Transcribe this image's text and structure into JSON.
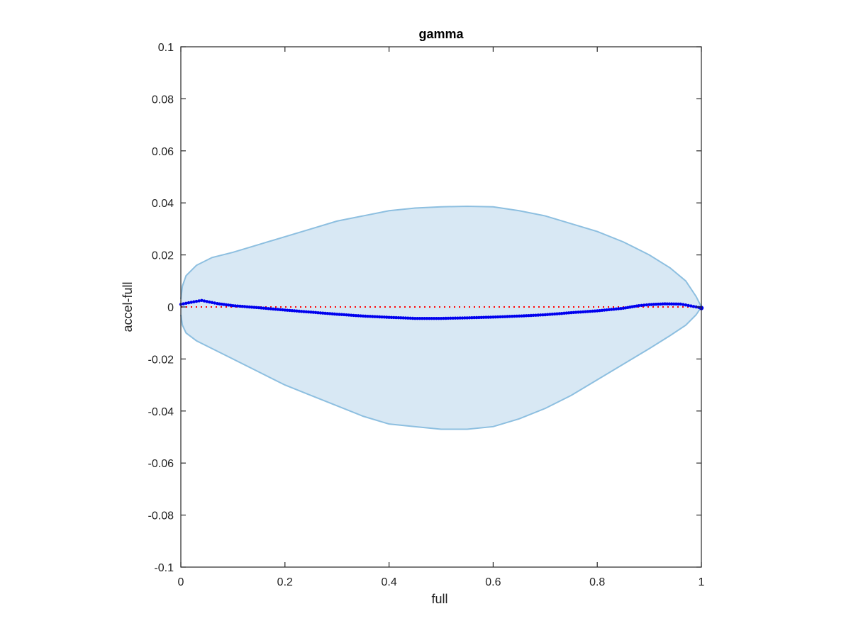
{
  "chart_data": {
    "type": "line",
    "title": "gamma",
    "xlabel": "full",
    "ylabel": "accel-full",
    "xlim": [
      0,
      1
    ],
    "ylim": [
      -0.1,
      0.1
    ],
    "x_ticks": [
      0,
      0.2,
      0.4,
      0.6,
      0.8,
      1
    ],
    "x_tick_labels": [
      "0",
      "0.2",
      "0.4",
      "0.6",
      "0.8",
      "1"
    ],
    "y_ticks": [
      0.1,
      0.08,
      0.06,
      0.04,
      0.02,
      0,
      -0.02,
      -0.04,
      -0.06,
      -0.08,
      -0.1
    ],
    "y_tick_labels": [
      "0.1",
      "0.08",
      "0.06",
      "0.04",
      "0.02",
      "0",
      "-0.02",
      "-0.04",
      "-0.06",
      "-0.08",
      "-0.1"
    ],
    "grid": false,
    "band": {
      "color": "#d8e8f4",
      "edge_color": "#8dbfe0",
      "x": [
        0,
        0.003,
        0.01,
        0.03,
        0.06,
        0.1,
        0.15,
        0.2,
        0.25,
        0.3,
        0.35,
        0.4,
        0.45,
        0.5,
        0.55,
        0.6,
        0.65,
        0.7,
        0.75,
        0.8,
        0.85,
        0.9,
        0.94,
        0.97,
        0.99,
        1.0
      ],
      "upper": [
        0.003,
        0.008,
        0.012,
        0.016,
        0.019,
        0.021,
        0.024,
        0.027,
        0.03,
        0.033,
        0.035,
        0.037,
        0.038,
        0.0385,
        0.0387,
        0.0385,
        0.037,
        0.035,
        0.032,
        0.029,
        0.025,
        0.02,
        0.015,
        0.01,
        0.004,
        0.0
      ],
      "lower": [
        -0.003,
        -0.007,
        -0.01,
        -0.013,
        -0.016,
        -0.02,
        -0.025,
        -0.03,
        -0.034,
        -0.038,
        -0.042,
        -0.045,
        -0.046,
        -0.047,
        -0.047,
        -0.046,
        -0.043,
        -0.039,
        -0.034,
        -0.028,
        -0.022,
        -0.016,
        -0.011,
        -0.007,
        -0.003,
        -0.0
      ]
    },
    "reference_line": {
      "y": 0,
      "color": "#ff0000",
      "style": "dotted"
    },
    "series": [
      {
        "color": "#0000ee",
        "marker": "dot",
        "x": [
          0,
          0.02,
          0.04,
          0.05,
          0.07,
          0.1,
          0.15,
          0.2,
          0.25,
          0.3,
          0.35,
          0.4,
          0.45,
          0.5,
          0.55,
          0.6,
          0.65,
          0.7,
          0.75,
          0.8,
          0.85,
          0.88,
          0.9,
          0.93,
          0.96,
          0.98,
          1.0
        ],
        "y": [
          0.001,
          0.0018,
          0.0025,
          0.0021,
          0.0013,
          0.0005,
          -0.0003,
          -0.0012,
          -0.002,
          -0.0028,
          -0.0035,
          -0.004,
          -0.0044,
          -0.0044,
          -0.0042,
          -0.0039,
          -0.0035,
          -0.003,
          -0.0022,
          -0.0015,
          -0.0005,
          0.0005,
          0.0009,
          0.0012,
          0.0011,
          0.0004,
          -0.0004
        ]
      }
    ]
  }
}
